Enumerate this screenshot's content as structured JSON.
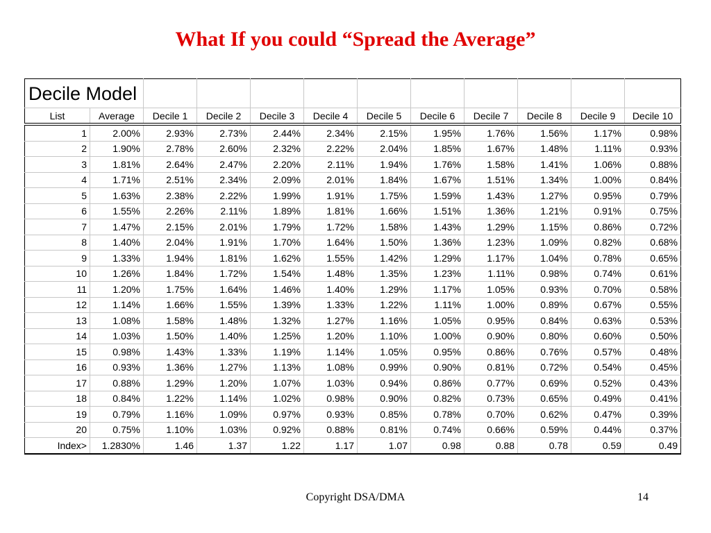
{
  "slide": {
    "title": "What If you could “Spread the Average”",
    "footer": "Copyright DSA/DMA",
    "page_number": "14"
  },
  "table": {
    "heading": "Decile Model",
    "columns": [
      "List",
      "Average",
      "Decile 1",
      "Decile 2",
      "Decile 3",
      "Decile 4",
      "Decile 5",
      "Decile 6",
      "Decile 7",
      "Decile 8",
      "Decile 9",
      "Decile 10"
    ],
    "rows": [
      [
        "1",
        "2.00%",
        "2.93%",
        "2.73%",
        "2.44%",
        "2.34%",
        "2.15%",
        "1.95%",
        "1.76%",
        "1.56%",
        "1.17%",
        "0.98%"
      ],
      [
        "2",
        "1.90%",
        "2.78%",
        "2.60%",
        "2.32%",
        "2.22%",
        "2.04%",
        "1.85%",
        "1.67%",
        "1.48%",
        "1.11%",
        "0.93%"
      ],
      [
        "3",
        "1.81%",
        "2.64%",
        "2.47%",
        "2.20%",
        "2.11%",
        "1.94%",
        "1.76%",
        "1.58%",
        "1.41%",
        "1.06%",
        "0.88%"
      ],
      [
        "4",
        "1.71%",
        "2.51%",
        "2.34%",
        "2.09%",
        "2.01%",
        "1.84%",
        "1.67%",
        "1.51%",
        "1.34%",
        "1.00%",
        "0.84%"
      ],
      [
        "5",
        "1.63%",
        "2.38%",
        "2.22%",
        "1.99%",
        "1.91%",
        "1.75%",
        "1.59%",
        "1.43%",
        "1.27%",
        "0.95%",
        "0.79%"
      ],
      [
        "6",
        "1.55%",
        "2.26%",
        "2.11%",
        "1.89%",
        "1.81%",
        "1.66%",
        "1.51%",
        "1.36%",
        "1.21%",
        "0.91%",
        "0.75%"
      ],
      [
        "7",
        "1.47%",
        "2.15%",
        "2.01%",
        "1.79%",
        "1.72%",
        "1.58%",
        "1.43%",
        "1.29%",
        "1.15%",
        "0.86%",
        "0.72%"
      ],
      [
        "8",
        "1.40%",
        "2.04%",
        "1.91%",
        "1.70%",
        "1.64%",
        "1.50%",
        "1.36%",
        "1.23%",
        "1.09%",
        "0.82%",
        "0.68%"
      ],
      [
        "9",
        "1.33%",
        "1.94%",
        "1.81%",
        "1.62%",
        "1.55%",
        "1.42%",
        "1.29%",
        "1.17%",
        "1.04%",
        "0.78%",
        "0.65%"
      ],
      [
        "10",
        "1.26%",
        "1.84%",
        "1.72%",
        "1.54%",
        "1.48%",
        "1.35%",
        "1.23%",
        "1.11%",
        "0.98%",
        "0.74%",
        "0.61%"
      ],
      [
        "11",
        "1.20%",
        "1.75%",
        "1.64%",
        "1.46%",
        "1.40%",
        "1.29%",
        "1.17%",
        "1.05%",
        "0.93%",
        "0.70%",
        "0.58%"
      ],
      [
        "12",
        "1.14%",
        "1.66%",
        "1.55%",
        "1.39%",
        "1.33%",
        "1.22%",
        "1.11%",
        "1.00%",
        "0.89%",
        "0.67%",
        "0.55%"
      ],
      [
        "13",
        "1.08%",
        "1.58%",
        "1.48%",
        "1.32%",
        "1.27%",
        "1.16%",
        "1.05%",
        "0.95%",
        "0.84%",
        "0.63%",
        "0.53%"
      ],
      [
        "14",
        "1.03%",
        "1.50%",
        "1.40%",
        "1.25%",
        "1.20%",
        "1.10%",
        "1.00%",
        "0.90%",
        "0.80%",
        "0.60%",
        "0.50%"
      ],
      [
        "15",
        "0.98%",
        "1.43%",
        "1.33%",
        "1.19%",
        "1.14%",
        "1.05%",
        "0.95%",
        "0.86%",
        "0.76%",
        "0.57%",
        "0.48%"
      ],
      [
        "16",
        "0.93%",
        "1.36%",
        "1.27%",
        "1.13%",
        "1.08%",
        "0.99%",
        "0.90%",
        "0.81%",
        "0.72%",
        "0.54%",
        "0.45%"
      ],
      [
        "17",
        "0.88%",
        "1.29%",
        "1.20%",
        "1.07%",
        "1.03%",
        "0.94%",
        "0.86%",
        "0.77%",
        "0.69%",
        "0.52%",
        "0.43%"
      ],
      [
        "18",
        "0.84%",
        "1.22%",
        "1.14%",
        "1.02%",
        "0.98%",
        "0.90%",
        "0.82%",
        "0.73%",
        "0.65%",
        "0.49%",
        "0.41%"
      ],
      [
        "19",
        "0.79%",
        "1.16%",
        "1.09%",
        "0.97%",
        "0.93%",
        "0.85%",
        "0.78%",
        "0.70%",
        "0.62%",
        "0.47%",
        "0.39%"
      ],
      [
        "20",
        "0.75%",
        "1.10%",
        "1.03%",
        "0.92%",
        "0.88%",
        "0.81%",
        "0.74%",
        "0.66%",
        "0.59%",
        "0.44%",
        "0.37%"
      ]
    ],
    "index_row": [
      "Index>",
      "1.2830%",
      "1.46",
      "1.37",
      "1.22",
      "1.17",
      "1.07",
      "0.98",
      "0.88",
      "0.78",
      "0.59",
      "0.49"
    ]
  },
  "colors": {
    "title": "#e00000",
    "text": "#000000",
    "grid": "#c7c7c7",
    "background": "#ffffff"
  }
}
